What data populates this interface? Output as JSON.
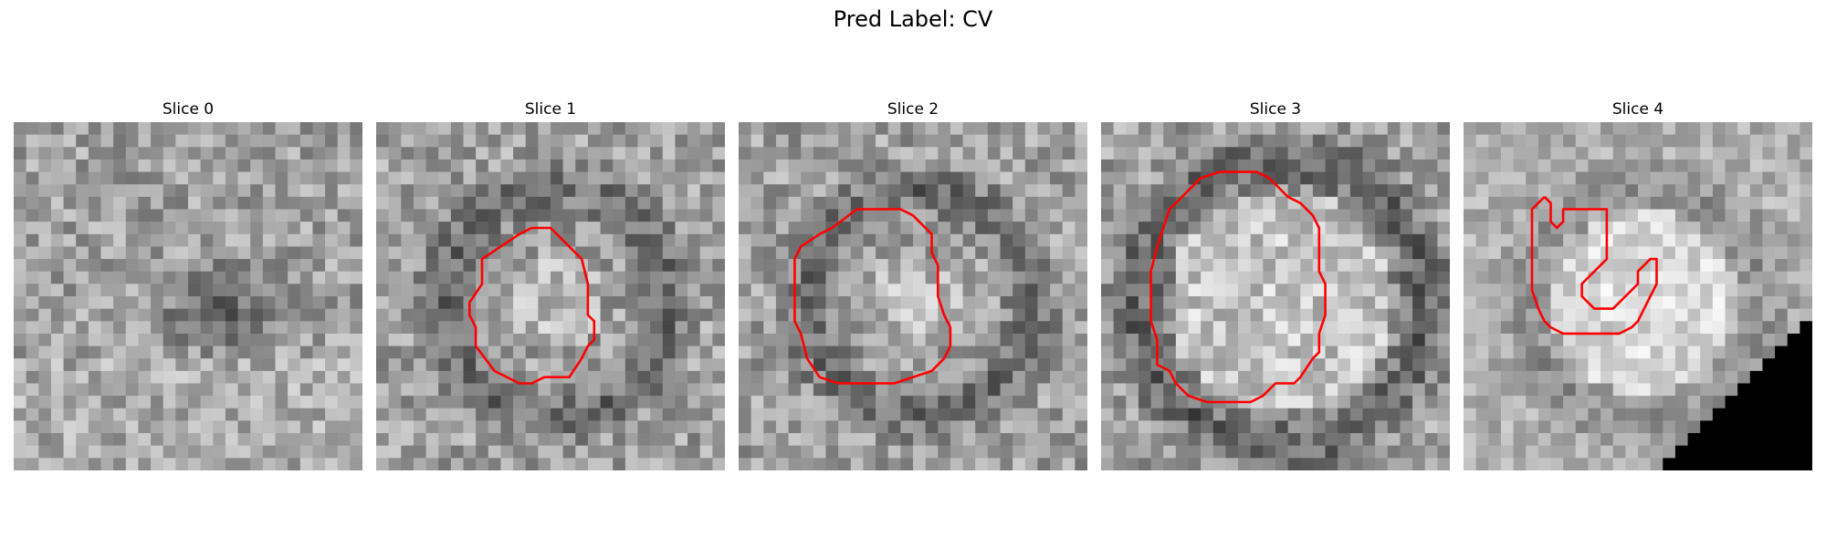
{
  "figure": {
    "title": "Pred Label: CV"
  },
  "panels": [
    {
      "title": "Slice 0",
      "seed": 11,
      "dark_blob": "center",
      "has_contour": false,
      "contour": []
    },
    {
      "title": "Slice 1",
      "seed": 23,
      "dark_blob": "ring",
      "has_contour": true,
      "contour": [
        [
          12.5,
          8.5
        ],
        [
          14.0,
          8.5
        ],
        [
          16.5,
          11.0
        ],
        [
          17.0,
          13.0
        ],
        [
          17.0,
          15.5
        ],
        [
          17.5,
          16.0
        ],
        [
          17.5,
          17.5
        ],
        [
          17.0,
          18.0
        ],
        [
          16.5,
          19.0
        ],
        [
          15.5,
          20.5
        ],
        [
          14.5,
          20.5
        ],
        [
          13.5,
          20.5
        ],
        [
          12.5,
          21.0
        ],
        [
          11.5,
          21.0
        ],
        [
          9.5,
          20.0
        ],
        [
          8.0,
          18.0
        ],
        [
          8.0,
          16.5
        ],
        [
          7.5,
          15.5
        ],
        [
          7.5,
          14.5
        ],
        [
          8.5,
          13.0
        ],
        [
          8.5,
          11.0
        ],
        [
          10.0,
          10.0
        ],
        [
          11.5,
          9.0
        ],
        [
          12.5,
          8.5
        ]
      ]
    },
    {
      "title": "Slice 2",
      "seed": 37,
      "dark_blob": "ring",
      "has_contour": true,
      "contour": [
        [
          7.5,
          8.5
        ],
        [
          9.5,
          7.0
        ],
        [
          13.0,
          7.0
        ],
        [
          14.0,
          7.5
        ],
        [
          15.0,
          8.5
        ],
        [
          15.5,
          9.0
        ],
        [
          15.5,
          10.5
        ],
        [
          16.0,
          11.5
        ],
        [
          16.0,
          14.0
        ],
        [
          16.5,
          15.5
        ],
        [
          17.0,
          16.5
        ],
        [
          17.0,
          18.0
        ],
        [
          16.5,
          19.0
        ],
        [
          15.5,
          20.0
        ],
        [
          14.0,
          20.5
        ],
        [
          12.5,
          21.0
        ],
        [
          8.0,
          21.0
        ],
        [
          6.5,
          20.5
        ],
        [
          5.5,
          19.0
        ],
        [
          5.0,
          17.0
        ],
        [
          4.5,
          16.0
        ],
        [
          4.5,
          11.0
        ],
        [
          5.0,
          10.0
        ],
        [
          6.5,
          9.0
        ],
        [
          7.5,
          8.5
        ]
      ]
    },
    {
      "title": "Slice 3",
      "seed": 41,
      "dark_blob": "ring_large",
      "has_contour": true,
      "contour": [
        [
          9.5,
          4.0
        ],
        [
          12.5,
          4.0
        ],
        [
          13.5,
          4.5
        ],
        [
          14.5,
          5.5
        ],
        [
          15.0,
          6.0
        ],
        [
          16.0,
          6.5
        ],
        [
          17.0,
          7.5
        ],
        [
          17.5,
          8.5
        ],
        [
          17.5,
          12.0
        ],
        [
          18.0,
          13.0
        ],
        [
          18.0,
          15.5
        ],
        [
          17.5,
          17.0
        ],
        [
          17.5,
          18.5
        ],
        [
          17.0,
          19.0
        ],
        [
          16.0,
          20.5
        ],
        [
          15.5,
          21.0
        ],
        [
          14.0,
          21.0
        ],
        [
          13.0,
          22.0
        ],
        [
          12.0,
          22.5
        ],
        [
          8.5,
          22.5
        ],
        [
          7.0,
          22.0
        ],
        [
          6.0,
          21.0
        ],
        [
          5.5,
          20.0
        ],
        [
          4.5,
          19.5
        ],
        [
          4.5,
          17.5
        ],
        [
          4.0,
          16.0
        ],
        [
          4.0,
          12.0
        ],
        [
          4.5,
          10.0
        ],
        [
          5.0,
          8.5
        ],
        [
          5.5,
          7.0
        ],
        [
          6.0,
          6.5
        ],
        [
          7.5,
          5.0
        ],
        [
          8.0,
          4.5
        ],
        [
          9.5,
          4.0
        ]
      ]
    },
    {
      "title": "Slice 4",
      "seed": 53,
      "dark_blob": "bright_ring",
      "has_contour": true,
      "contour": [
        [
          6.5,
          6.0
        ],
        [
          7.0,
          6.5
        ],
        [
          7.0,
          8.0
        ],
        [
          7.5,
          8.5
        ],
        [
          8.0,
          8.0
        ],
        [
          8.0,
          7.0
        ],
        [
          11.5,
          7.0
        ],
        [
          11.5,
          11.0
        ],
        [
          10.5,
          12.0
        ],
        [
          10.0,
          12.5
        ],
        [
          9.5,
          13.0
        ],
        [
          9.5,
          14.0
        ],
        [
          10.0,
          14.5
        ],
        [
          10.5,
          15.0
        ],
        [
          12.0,
          15.0
        ],
        [
          12.5,
          14.5
        ],
        [
          13.5,
          13.5
        ],
        [
          14.0,
          13.0
        ],
        [
          14.0,
          12.0
        ],
        [
          14.5,
          11.5
        ],
        [
          15.0,
          11.0
        ],
        [
          15.5,
          11.0
        ],
        [
          15.5,
          13.0
        ],
        [
          15.0,
          14.0
        ],
        [
          14.5,
          15.0
        ],
        [
          14.0,
          16.0
        ],
        [
          13.5,
          16.5
        ],
        [
          12.5,
          17.0
        ],
        [
          8.0,
          17.0
        ],
        [
          7.0,
          16.5
        ],
        [
          6.5,
          16.0
        ],
        [
          6.0,
          15.0
        ],
        [
          5.5,
          13.5
        ],
        [
          5.5,
          7.0
        ],
        [
          6.5,
          6.0
        ]
      ]
    }
  ],
  "colors": {
    "contour": "#ff0000",
    "background": "#ffffff"
  }
}
